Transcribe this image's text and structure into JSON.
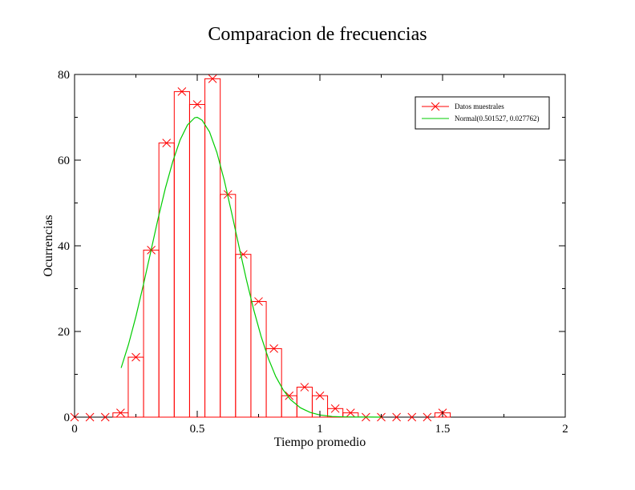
{
  "chart_data": {
    "type": "bar",
    "title": "Comparacion de frecuencias",
    "xlabel": "Tiempo promedio",
    "ylabel": "Ocurrencias",
    "xlim": [
      0,
      2
    ],
    "ylim": [
      0,
      80
    ],
    "xticks": [
      0,
      0.5,
      1,
      1.5,
      2
    ],
    "xtick_labels": [
      "0",
      "0.5",
      "1",
      "1.5",
      "2"
    ],
    "yticks": [
      0,
      20,
      40,
      60,
      80
    ],
    "ytick_labels": [
      "0",
      "20",
      "40",
      "60",
      "80"
    ],
    "grid": false,
    "legend_position": "top-right",
    "series": [
      {
        "name": "Datos muestrales",
        "kind": "histogram",
        "color": "#ff0000",
        "marker": "x",
        "bin_width": 0.0625,
        "bin_centers": [
          0,
          0.0625,
          0.125,
          0.1875,
          0.25,
          0.3125,
          0.375,
          0.4375,
          0.5,
          0.5625,
          0.625,
          0.6875,
          0.75,
          0.8125,
          0.875,
          0.9375,
          1.0,
          1.0625,
          1.125,
          1.1875,
          1.25,
          1.3125,
          1.375,
          1.4375,
          1.5
        ],
        "values": [
          0,
          0,
          0,
          1,
          14,
          39,
          64,
          76,
          73,
          79,
          52,
          38,
          27,
          16,
          5,
          7,
          5,
          2,
          1,
          0,
          0,
          0,
          0,
          0,
          1
        ]
      },
      {
        "name": "Normal(0.501527, 0.027762)",
        "kind": "line",
        "color": "#00cc00",
        "x": [
          0.19,
          0.22,
          0.25,
          0.28,
          0.31,
          0.34,
          0.37,
          0.4,
          0.43,
          0.46,
          0.49,
          0.5,
          0.52,
          0.55,
          0.58,
          0.61,
          0.64,
          0.67,
          0.7,
          0.73,
          0.76,
          0.79,
          0.82,
          0.85,
          0.88,
          0.92,
          0.96,
          1.0,
          1.05,
          1.1,
          1.15,
          1.2,
          1.25
        ],
        "values": [
          11.5,
          17.0,
          23.5,
          30.8,
          38.5,
          46.2,
          53.4,
          59.6,
          64.7,
          68.2,
          69.9,
          70.0,
          69.3,
          66.6,
          61.8,
          55.3,
          47.8,
          39.9,
          32.2,
          25.1,
          18.9,
          13.7,
          9.5,
          6.4,
          4.1,
          2.2,
          1.1,
          0.5,
          0.15,
          0.05,
          0.02,
          0.01,
          0.0
        ]
      }
    ]
  }
}
